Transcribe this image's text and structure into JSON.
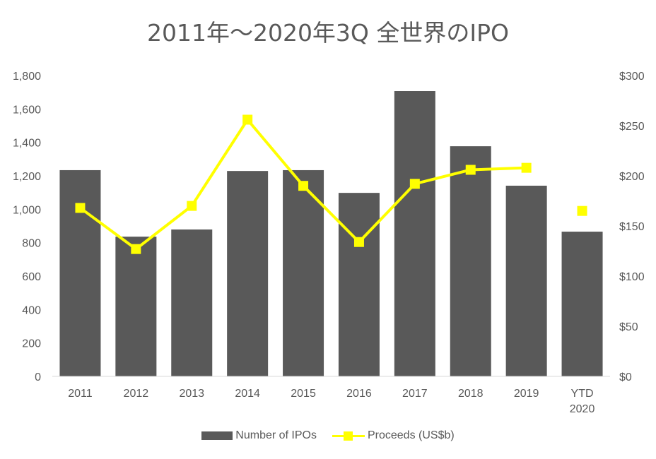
{
  "chart_data": {
    "type": "bar+line",
    "title": "2011年～2020年3Q 全世界のIPO",
    "categories": [
      "2011",
      "2012",
      "2013",
      "2014",
      "2015",
      "2016",
      "2017",
      "2018",
      "2019",
      "YTD 2020"
    ],
    "category_lines": [
      [
        "2011"
      ],
      [
        "2012"
      ],
      [
        "2013"
      ],
      [
        "2014"
      ],
      [
        "2015"
      ],
      [
        "2016"
      ],
      [
        "2017"
      ],
      [
        "2018"
      ],
      [
        "2019"
      ],
      [
        "YTD",
        "2020"
      ]
    ],
    "series": [
      {
        "name": "Number of IPOs",
        "type": "bar",
        "axis": "left",
        "color": "#595959",
        "values": [
          1234,
          836,
          879,
          1229,
          1234,
          1098,
          1707,
          1377,
          1141,
          866
        ]
      },
      {
        "name": "Proceeds (US$b)",
        "type": "line",
        "axis": "right",
        "color": "#ffff00",
        "values": [
          168,
          127,
          170,
          256,
          190,
          134,
          192,
          206,
          208,
          165
        ],
        "connected_until_index": 8
      }
    ],
    "left_axis": {
      "ylim": [
        0,
        1800
      ],
      "ticks": [
        "0",
        "200",
        "400",
        "600",
        "800",
        "1,000",
        "1,200",
        "1,400",
        "1,600",
        "1,800"
      ]
    },
    "right_axis": {
      "ylim": [
        0,
        300
      ],
      "ticks": [
        "$0",
        "$50",
        "$100",
        "$150",
        "$200",
        "$250",
        "$300"
      ]
    },
    "grid": false,
    "legend_position": "bottom"
  }
}
